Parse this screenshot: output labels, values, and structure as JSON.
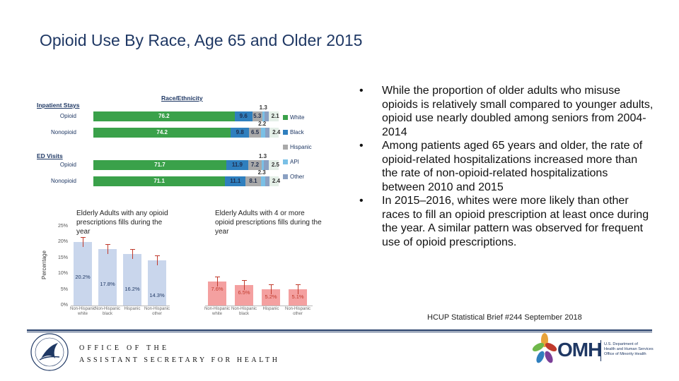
{
  "title": "Opioid Use By Race, Age 65 and Older 2015",
  "chart_data": [
    {
      "type": "bar",
      "orientation": "horizontal-stacked",
      "title": "Race/Ethnicity",
      "sections": [
        "Inpatient Stays",
        "ED Visits"
      ],
      "categories": [
        "Opioid",
        "Nonopioid",
        "Opioid",
        "Nonopioid"
      ],
      "series": [
        {
          "name": "White",
          "color": "#3aa14a",
          "values": [
            76.2,
            74.2,
            71.7,
            71.1
          ]
        },
        {
          "name": "Black",
          "color": "#2f7fbe",
          "values": [
            9.6,
            9.8,
            11.9,
            11.1
          ]
        },
        {
          "name": "Hispanic",
          "color": "#a9a9a9",
          "values": [
            5.3,
            6.5,
            7.2,
            8.1
          ]
        },
        {
          "name": "API",
          "color": "#7ac0e6",
          "values": [
            1.3,
            2.2,
            1.3,
            2.3
          ]
        },
        {
          "name": "Other",
          "color": "#8aa0c2",
          "values": [
            2.1,
            2.4,
            2.5,
            2.4
          ]
        }
      ],
      "labels": [
        [
          "76.2",
          "9.6",
          "5.3",
          "1.3",
          "2.1"
        ],
        [
          "74.2",
          "9.8",
          "6.5",
          "2.2",
          "2.4"
        ],
        [
          "71.7",
          "11.9",
          "7.2",
          "1.3",
          "2.5"
        ],
        [
          "71.1",
          "11.1",
          "8.1",
          "2.3",
          "2.4"
        ]
      ]
    },
    {
      "type": "bar",
      "title": "Elderly Adults with any opioid prescriptions fills during the year",
      "ylabel": "Percentage",
      "yticks": [
        "25%",
        "20%",
        "15%",
        "10%",
        "5%",
        "0%"
      ],
      "ylim": [
        0,
        25
      ],
      "categories": [
        "Non-Hispanic white",
        "Non-Hispanic black",
        "Hispanic",
        "Non-Hispanic other"
      ],
      "values": [
        20.2,
        17.8,
        16.2,
        14.3
      ],
      "labels": [
        "20.2%",
        "17.8%",
        "16.2%",
        "14.3%"
      ],
      "color": "#c9d6ec"
    },
    {
      "type": "bar",
      "title": "Elderly Adults with 4 or more opioid prescriptions fills during the year",
      "ylim": [
        0,
        25
      ],
      "categories": [
        "Non-Hispanic white",
        "Non-Hispanic black",
        "Hispanic",
        "Non-Hispanic other"
      ],
      "values": [
        7.6,
        6.5,
        5.2,
        5.1
      ],
      "labels": [
        "7.6%",
        "6.5%",
        "5.2%",
        "5.1%"
      ],
      "color": "#f4a0a0"
    }
  ],
  "bullets": [
    "While the proportion of older adults who misuse opioids is relatively small compared to younger adults, opioid use nearly doubled among seniors from 2004-2014",
    "Among patients aged 65 years and older, the rate of opioid-related hospitalizations increased more than the rate of non-opioid-related hospitalizations between 2010 and 2015",
    "In 2015–2016, whites were more likely than other races to fill an opioid prescription at least once during the year. A similar pattern was observed for frequent use of opioid prescriptions."
  ],
  "bullet_glyph": "•",
  "source": "HCUP Statistical Brief #244 September 2018",
  "footer": {
    "office_line1": "OFFICE OF THE",
    "office_line2": "ASSISTANT SECRETARY FOR HEALTH",
    "omh_mark": "OMH",
    "omh_line1": "U.S. Department of",
    "omh_line2": "Health and Human Services",
    "omh_line3": "Office of Minority Health"
  }
}
